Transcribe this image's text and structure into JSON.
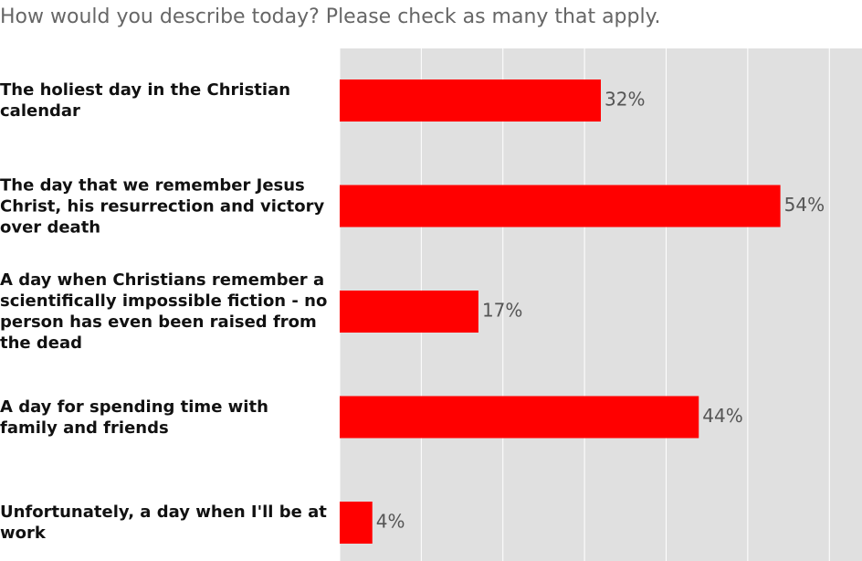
{
  "chart_data": {
    "type": "hbar",
    "title": "How would you describe today? Please check as many that apply.",
    "categories": [
      "The holiest day in the Christian calendar",
      "The day that we remember Jesus Christ, his resurrection and victory over death",
      "A day when Christians remember a scientifically impossible fiction - no person has even been raised from the dead",
      "A day for spending time with family and friends",
      "Unfortunately, a day when I'll be at work"
    ],
    "values": [
      32,
      54,
      17,
      44,
      4
    ],
    "value_labels": [
      "32%",
      "54%",
      "17%",
      "44%",
      "4%"
    ],
    "color": "#ff0000",
    "xlim": [
      0,
      64
    ],
    "xticks": [
      0,
      10,
      20,
      30,
      40,
      50,
      60
    ],
    "grid": true
  }
}
